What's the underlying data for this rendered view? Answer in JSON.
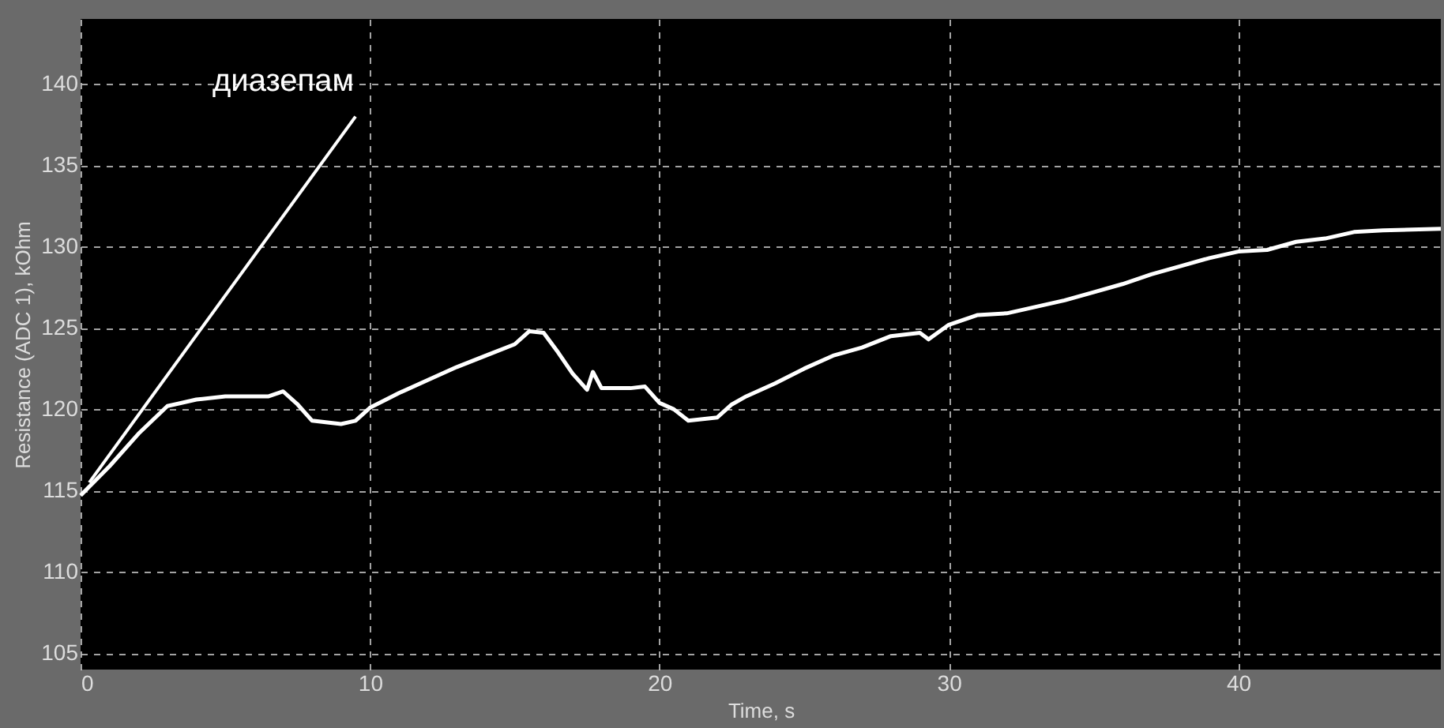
{
  "chart_data": {
    "type": "line",
    "xlabel": "Time, s",
    "ylabel": "Resistance (ADC 1), kOhm",
    "xlim": [
      0,
      47
    ],
    "ylim": [
      104,
      144
    ],
    "xticks": [
      0,
      10,
      20,
      30,
      40
    ],
    "yticks": [
      105,
      110,
      115,
      120,
      125,
      130,
      135,
      140
    ],
    "grid": true,
    "marker": "none",
    "line_style": "solid",
    "annotations": [
      {
        "text": "диазепам",
        "x": 0.3,
        "y": 115.5
      }
    ],
    "series": [
      {
        "color": "#ffffff",
        "x": [
          0,
          1,
          2,
          3,
          4,
          5,
          6.5,
          7,
          7.5,
          8,
          9,
          9.5,
          10,
          11,
          12,
          13,
          14,
          15,
          15.5,
          16,
          16.5,
          17,
          17.5,
          17.7,
          18,
          19,
          19.5,
          20,
          20.5,
          21,
          22,
          22.5,
          23,
          24,
          25,
          26,
          27,
          28,
          29,
          29.3,
          30,
          31,
          32,
          33,
          34,
          35,
          36,
          37,
          38,
          39,
          40,
          41,
          42,
          43,
          44,
          45,
          47
        ],
        "values": [
          114.7,
          116.5,
          118.5,
          120.2,
          120.6,
          120.8,
          120.8,
          121.1,
          120.3,
          119.3,
          119.1,
          119.3,
          120.1,
          121,
          121.8,
          122.6,
          123.3,
          124,
          124.8,
          124.7,
          123.5,
          122.2,
          121.2,
          122.3,
          121.3,
          121.3,
          121.4,
          120.4,
          120,
          119.3,
          119.5,
          120.3,
          120.8,
          121.6,
          122.5,
          123.3,
          123.8,
          124.5,
          124.7,
          124.3,
          125.2,
          125.8,
          125.9,
          126.3,
          126.7,
          127.2,
          127.7,
          128.3,
          128.8,
          129.3,
          129.7,
          129.8,
          130.3,
          130.5,
          130.9,
          131,
          131.1
        ]
      }
    ]
  }
}
